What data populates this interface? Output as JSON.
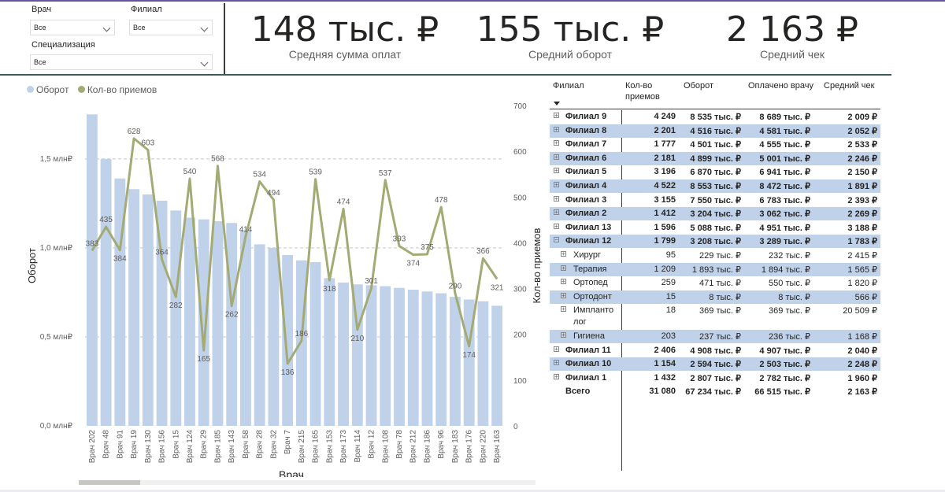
{
  "filters": {
    "doctor": {
      "label": "Врач",
      "value": "Все"
    },
    "branch": {
      "label": "Филиал",
      "value": "Все"
    },
    "specialization": {
      "label": "Специализация",
      "value": "Все"
    }
  },
  "kpis": [
    {
      "value": "148 тыс. ₽",
      "label": "Средняя сумма оплат"
    },
    {
      "value": "155 тыс. ₽",
      "label": "Средний оборот"
    },
    {
      "value": "2 163 ₽",
      "label": "Средний чек"
    }
  ],
  "legend": {
    "bars": "Оборот",
    "line": "Кол-во приемов"
  },
  "colors": {
    "bar": "#bfd2ea",
    "line": "#a4aa74",
    "row_highlight": "#bfd2ea"
  },
  "chart_data": {
    "type": "bar",
    "xlabel": "Врач",
    "ylabel": "Оборот",
    "y2label": "Кол-во приемов",
    "ylim": [
      0,
      1800000
    ],
    "y2lim": [
      0,
      700
    ],
    "yticks": [
      "0,0 млн₽",
      "0,5 млн₽",
      "1,0 млн₽",
      "1,5 млн₽"
    ],
    "y2ticks": [
      "0",
      "100",
      "200",
      "300",
      "400",
      "500",
      "600",
      "700"
    ],
    "categories": [
      "Врач 202",
      "Врач 48",
      "Врач 91",
      "Врач 19",
      "Врач 130",
      "Врач 156",
      "Врач 15",
      "Врач 124",
      "Врач 29",
      "Врач 185",
      "Врач 143",
      "Врач 58",
      "Врач 28",
      "Врач 32",
      "Врач 7",
      "Врач 215",
      "Врач 165",
      "Врач 153",
      "Врач 173",
      "Врач 114",
      "Врач 12",
      "Врач 108",
      "Врач 78",
      "Врач 212",
      "Врач 186",
      "Врач 96",
      "Врач 183",
      "Врач 176",
      "Врач 220",
      "Врач 163"
    ],
    "series": [
      {
        "name": "Оборот",
        "kind": "bar",
        "values": [
          1750000,
          1500000,
          1390000,
          1330000,
          1300000,
          1265000,
          1210000,
          1170000,
          1160000,
          1150000,
          1140000,
          1100000,
          1020000,
          1000000,
          960000,
          930000,
          920000,
          830000,
          805000,
          795000,
          790000,
          785000,
          775000,
          765000,
          755000,
          745000,
          725000,
          710000,
          700000,
          675000
        ]
      },
      {
        "name": "Кол-во приемов",
        "kind": "line",
        "values": [
          383,
          435,
          384,
          628,
          603,
          364,
          282,
          540,
          165,
          568,
          262,
          414,
          534,
          494,
          136,
          186,
          539,
          318,
          474,
          210,
          301,
          537,
          393,
          374,
          375,
          478,
          290,
          174,
          366,
          321
        ]
      }
    ],
    "grid": "dashed at 0,5 / 1,0 / 1,5 млн₽"
  },
  "table": {
    "headers": [
      "Филиал",
      "Кол-во приемов",
      "Оборот",
      "Оплачено врачу",
      "Средний чек"
    ],
    "rows": [
      {
        "name": "Филиал 9",
        "visits": "4 249",
        "turnover": "8 535 тыс. ₽",
        "paid": "8 689 тыс. ₽",
        "avg": "2 009 ₽"
      },
      {
        "name": "Филиал 8",
        "visits": "2 201",
        "turnover": "4 516 тыс. ₽",
        "paid": "4 581 тыс. ₽",
        "avg": "2 052 ₽"
      },
      {
        "name": "Филиал 7",
        "visits": "1 777",
        "turnover": "4 501 тыс. ₽",
        "paid": "4 555 тыс. ₽",
        "avg": "2 533 ₽"
      },
      {
        "name": "Филиал 6",
        "visits": "2 181",
        "turnover": "4 899 тыс. ₽",
        "paid": "5 001 тыс. ₽",
        "avg": "2 246 ₽"
      },
      {
        "name": "Филиал 5",
        "visits": "3 196",
        "turnover": "6 870 тыс. ₽",
        "paid": "6 941 тыс. ₽",
        "avg": "2 150 ₽"
      },
      {
        "name": "Филиал 4",
        "visits": "4 522",
        "turnover": "8 553 тыс. ₽",
        "paid": "8 472 тыс. ₽",
        "avg": "1 891 ₽"
      },
      {
        "name": "Филиал 3",
        "visits": "3 155",
        "turnover": "7 550 тыс. ₽",
        "paid": "6 783 тыс. ₽",
        "avg": "2 393 ₽"
      },
      {
        "name": "Филиал 2",
        "visits": "1 412",
        "turnover": "3 204 тыс. ₽",
        "paid": "3 062 тыс. ₽",
        "avg": "2 269 ₽"
      },
      {
        "name": "Филиал 13",
        "visits": "1 596",
        "turnover": "5 088 тыс. ₽",
        "paid": "4 951 тыс. ₽",
        "avg": "3 188 ₽"
      },
      {
        "name": "Филиал 12",
        "visits": "1 799",
        "turnover": "3 208 тыс. ₽",
        "paid": "3 289 тыс. ₽",
        "avg": "1 783 ₽"
      },
      {
        "name": "Хирург",
        "visits": "95",
        "turnover": "229 тыс. ₽",
        "paid": "232 тыс. ₽",
        "avg": "2 415 ₽"
      },
      {
        "name": "Терапия",
        "visits": "1 209",
        "turnover": "1 893 тыс. ₽",
        "paid": "1 894 тыс. ₽",
        "avg": "1 565 ₽"
      },
      {
        "name": "Ортопед",
        "visits": "259",
        "turnover": "471 тыс. ₽",
        "paid": "550 тыс. ₽",
        "avg": "1 820 ₽"
      },
      {
        "name": "Ортодонт",
        "visits": "15",
        "turnover": "8 тыс. ₽",
        "paid": "8 тыс. ₽",
        "avg": "566 ₽"
      },
      {
        "name": "Импланто",
        "name2": "лог",
        "visits": "18",
        "turnover": "369 тыс. ₽",
        "paid": "369 тыс. ₽",
        "avg": "20 509 ₽"
      },
      {
        "name": "Гигиена",
        "visits": "203",
        "turnover": "237 тыс. ₽",
        "paid": "236 тыс. ₽",
        "avg": "1 168 ₽"
      },
      {
        "name": "Филиал 11",
        "visits": "2 406",
        "turnover": "4 908 тыс. ₽",
        "paid": "4 907 тыс. ₽",
        "avg": "2 040 ₽"
      },
      {
        "name": "Филиал 10",
        "visits": "1 154",
        "turnover": "2 594 тыс. ₽",
        "paid": "2 503 тыс. ₽",
        "avg": "2 248 ₽"
      },
      {
        "name": "Филиал 1",
        "visits": "1 432",
        "turnover": "2 807 тыс. ₽",
        "paid": "2 782 тыс. ₽",
        "avg": "1 960 ₽"
      },
      {
        "name": "Всего",
        "visits": "31 080",
        "turnover": "67 234 тыс. ₽",
        "paid": "66 515 тыс. ₽",
        "avg": "2 163 ₽"
      }
    ]
  }
}
